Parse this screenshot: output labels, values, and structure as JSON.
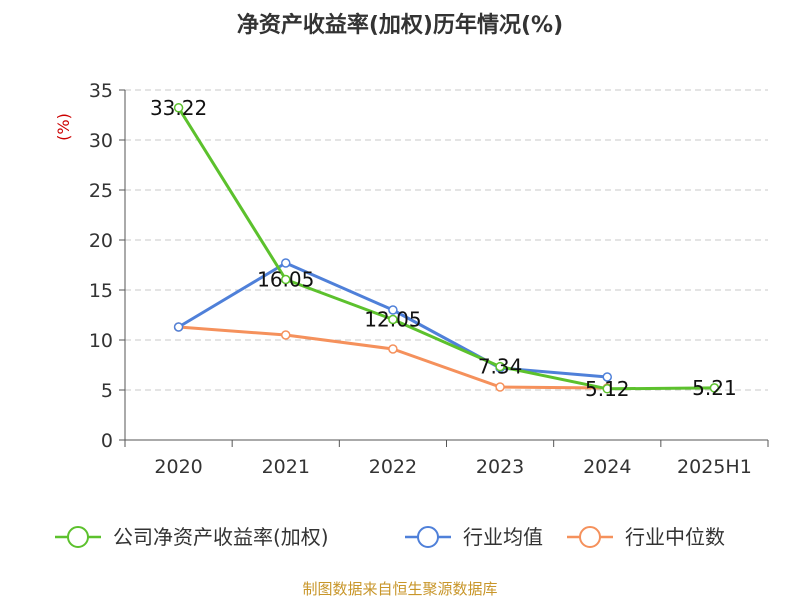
{
  "chart_data": {
    "type": "line",
    "title": "净资产收益率(加权)历年情况(%)",
    "ylabel": "(%)",
    "xlabel": "",
    "categories": [
      "2020",
      "2021",
      "2022",
      "2023",
      "2024",
      "2025H1"
    ],
    "yticks": [
      "0",
      "5",
      "10",
      "15",
      "20",
      "25",
      "30",
      "35"
    ],
    "ylim": [
      0,
      35
    ],
    "grid": true,
    "legend_position": "bottom",
    "series": [
      {
        "name": "公司净资产收益率(加权)",
        "color": "#5cc12d",
        "values": [
          33.22,
          16.05,
          12.05,
          7.34,
          5.12,
          5.21
        ],
        "labels": [
          "33.22",
          "16.05",
          "12.05",
          "7.34",
          "5.12",
          "5.21"
        ]
      },
      {
        "name": "行业均值",
        "color": "#4f80d9",
        "values": [
          11.3,
          17.7,
          13.0,
          7.2,
          6.3,
          null
        ]
      },
      {
        "name": "行业中位数",
        "color": "#f5915c",
        "values": [
          11.3,
          10.5,
          9.1,
          5.3,
          5.2,
          null
        ]
      }
    ]
  },
  "source": "制图数据来自恒生聚源数据库"
}
